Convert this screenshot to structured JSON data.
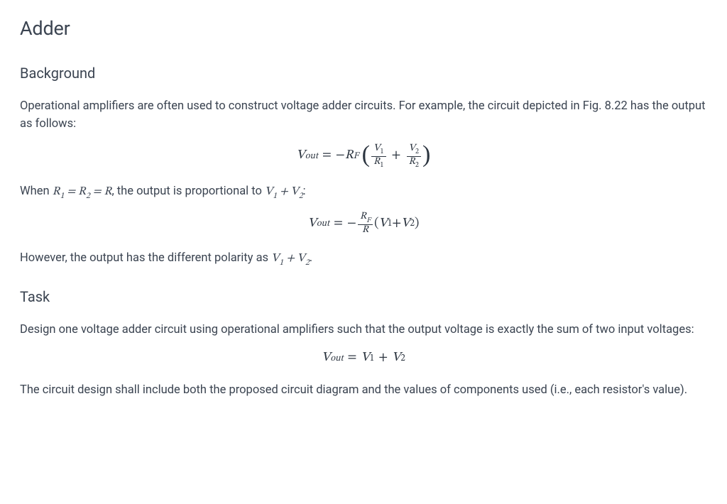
{
  "title": "Adder",
  "background": {
    "heading": "Background",
    "p1a": "Operational amplifiers are often used to construct voltage adder circuits. For example, the circuit depicted in Fig. 8.22 has the output as follows:",
    "p2_prefix": "When ",
    "p2_mid": ", the output is proportional to ",
    "p2_suffix": ":",
    "p3a": "However, the output has the different polarity as ",
    "p3b": "."
  },
  "task": {
    "heading": "Task",
    "p1": "Design one voltage adder circuit using operational amplifiers such that the output voltage is exactly the sum of two input voltages:",
    "p2": "The circuit design shall include both the proposed circuit diagram and the values of components used (i.e., each resistor's value)."
  },
  "math": {
    "Vout": "V",
    "Vout_sub": "out",
    "minus": "−",
    "plus": "+",
    "eq": "=",
    "Rf": "R",
    "Rf_sub": "F",
    "V1": "V",
    "V1_sub": "1",
    "V2": "V",
    "V2_sub": "2",
    "R1": "R",
    "R1_sub": "1",
    "R2": "R",
    "R2_sub": "2",
    "R": "R",
    "lparen": "(",
    "rparen": ")"
  },
  "style": {
    "text_color": "#3b4451",
    "math_color": "#2c3540",
    "background": "#ffffff",
    "title_fontsize": 27,
    "heading_fontsize": 20,
    "body_fontsize": 16.5
  }
}
